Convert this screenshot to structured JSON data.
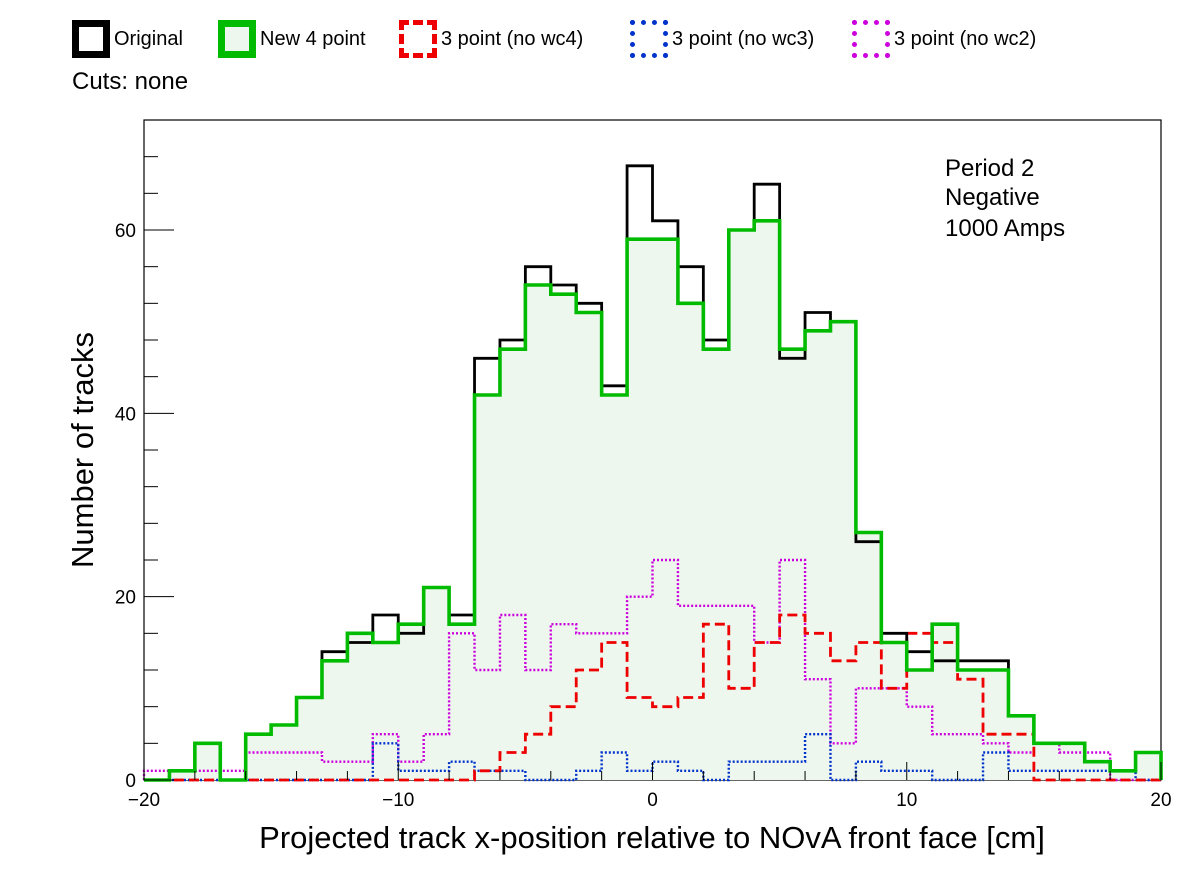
{
  "legend": [
    {
      "name": "Original",
      "color": "#000000",
      "style": "solid",
      "fill": "none"
    },
    {
      "name": "New 4 point",
      "color": "#00bb00",
      "style": "solid",
      "fill": "#eef7ee"
    },
    {
      "name": "3 point (no wc4)",
      "color": "#ee0000",
      "style": "dashed",
      "fill": "none"
    },
    {
      "name": "3 point (no wc3)",
      "color": "#0033cc",
      "style": "dotted",
      "fill": "none"
    },
    {
      "name": "3 point (no wc2)",
      "color": "#cc00dd",
      "style": "dotted",
      "fill": "none"
    }
  ],
  "cuts_label": "Cuts: none",
  "chart_data": {
    "type": "histogram",
    "xlabel": "Projected track x-position relative to NOvA front face [cm]",
    "ylabel": "Number of tracks",
    "xlim": [
      -20,
      20
    ],
    "ylim": [
      0,
      72
    ],
    "xticks": [
      -20,
      -10,
      0,
      10,
      20
    ],
    "yticks": [
      0,
      20,
      40,
      60
    ],
    "xtick_labels": [
      "−20",
      "−10",
      "0",
      "10",
      "20"
    ],
    "ytick_labels": [
      "0",
      "20",
      "40",
      "60"
    ],
    "annotation": [
      "Period 2",
      "Negative",
      "1000 Amps"
    ],
    "bin_edges_start": -20,
    "bin_width": 1,
    "series": [
      {
        "name": "Original",
        "values": [
          0,
          1,
          4,
          0,
          5,
          6,
          9,
          14,
          15,
          18,
          16,
          21,
          18,
          46,
          48,
          56,
          54,
          52,
          43,
          67,
          61,
          56,
          48,
          60,
          65,
          46,
          51,
          50,
          26,
          16,
          14,
          13,
          13,
          13,
          7,
          4,
          4,
          2,
          1,
          3
        ]
      },
      {
        "name": "New 4 point",
        "values": [
          0,
          1,
          4,
          0,
          5,
          6,
          9,
          13,
          16,
          15,
          17,
          21,
          17,
          42,
          47,
          54,
          53,
          51,
          42,
          59,
          59,
          52,
          47,
          60,
          61,
          47,
          49,
          50,
          27,
          15,
          12,
          17,
          12,
          12,
          7,
          4,
          4,
          2,
          1,
          3
        ]
      },
      {
        "name": "3 point (no wc4)",
        "values": [
          0,
          0,
          0,
          0,
          0,
          0,
          0,
          0,
          0,
          0,
          0,
          0,
          0,
          1,
          3,
          5,
          8,
          12,
          15,
          9,
          8,
          9,
          17,
          10,
          15,
          18,
          16,
          13,
          15,
          10,
          16,
          15,
          11,
          5,
          5,
          0,
          0,
          0,
          0,
          0
        ]
      },
      {
        "name": "3 point (no wc3)",
        "values": [
          0,
          0,
          0,
          0,
          0,
          0,
          0,
          0,
          0,
          4,
          1,
          1,
          2,
          1,
          1,
          0,
          0,
          1,
          3,
          1,
          2,
          1,
          0,
          2,
          2,
          2,
          5,
          0,
          2,
          1,
          1,
          0,
          0,
          3,
          1,
          1,
          1,
          1,
          1,
          0
        ]
      },
      {
        "name": "3 point (no wc2)",
        "values": [
          1,
          1,
          1,
          1,
          3,
          3,
          3,
          2,
          2,
          5,
          2,
          5,
          16,
          12,
          18,
          12,
          17,
          16,
          16,
          20,
          24,
          19,
          19,
          19,
          15,
          24,
          11,
          4,
          10,
          10,
          8,
          5,
          5,
          4,
          3,
          4,
          3,
          3,
          0,
          0
        ]
      }
    ]
  }
}
